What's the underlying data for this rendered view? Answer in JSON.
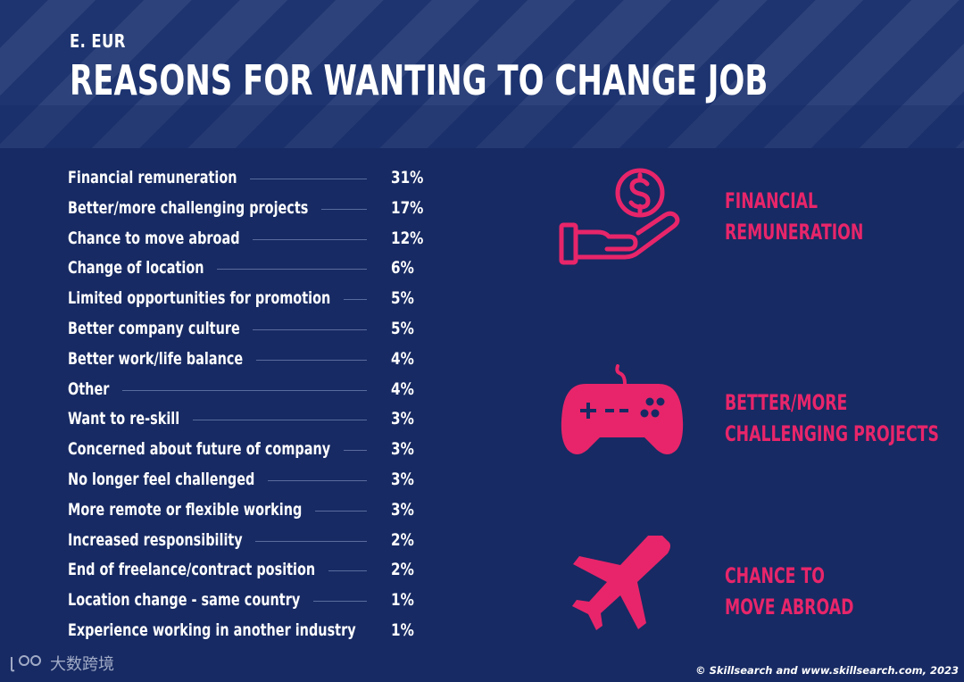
{
  "header": {
    "subtitle": "E. EUR",
    "title": "REASONS FOR WANTING TO CHANGE JOB"
  },
  "chart_data": {
    "type": "table",
    "title": "REASONS FOR WANTING TO CHANGE JOB",
    "subtitle": "E. EUR",
    "unit": "%",
    "rows": [
      {
        "label": "Financial remuneration",
        "value": 31,
        "display": "31%"
      },
      {
        "label": "Better/more challenging projects",
        "value": 17,
        "display": "17%"
      },
      {
        "label": "Chance to move abroad",
        "value": 12,
        "display": "12%"
      },
      {
        "label": "Change of location",
        "value": 6,
        "display": "6%"
      },
      {
        "label": "Limited opportunities for promotion",
        "value": 5,
        "display": "5%"
      },
      {
        "label": "Better company culture",
        "value": 5,
        "display": "5%"
      },
      {
        "label": "Better work/life balance",
        "value": 4,
        "display": "4%"
      },
      {
        "label": "Other",
        "value": 4,
        "display": "4%"
      },
      {
        "label": "Want to re-skill",
        "value": 3,
        "display": "3%"
      },
      {
        "label": "Concerned about future of company",
        "value": 3,
        "display": "3%"
      },
      {
        "label": "No longer feel challenged",
        "value": 3,
        "display": "3%"
      },
      {
        "label": "More remote or flexible working",
        "value": 3,
        "display": "3%"
      },
      {
        "label": "Increased responsibility",
        "value": 2,
        "display": "2%"
      },
      {
        "label": "End of freelance/contract position",
        "value": 2,
        "display": "2%"
      },
      {
        "label": "Location change - same country",
        "value": 1,
        "display": "1%"
      },
      {
        "label": "Experience working in another industry",
        "value": 1,
        "display": "1%"
      }
    ]
  },
  "highlights": [
    {
      "line1": "FINANCIAL",
      "line2": "REMUNERATION",
      "icon": "hand-dollar-icon"
    },
    {
      "line1": "BETTER/MORE",
      "line2": "CHALLENGING PROJECTS",
      "icon": "gamepad-icon"
    },
    {
      "line1": "CHANCE TO",
      "line2": "MOVE ABROAD",
      "icon": "airplane-icon"
    }
  ],
  "footer": {
    "credit": "© Skillsearch and www.skillsearch.com, 2023",
    "watermark": "大数跨境"
  },
  "colors": {
    "background": "#172a63",
    "header": "#1d3470",
    "accent": "#e8256a",
    "text": "#ffffff",
    "leader": "#5a6c9e"
  }
}
